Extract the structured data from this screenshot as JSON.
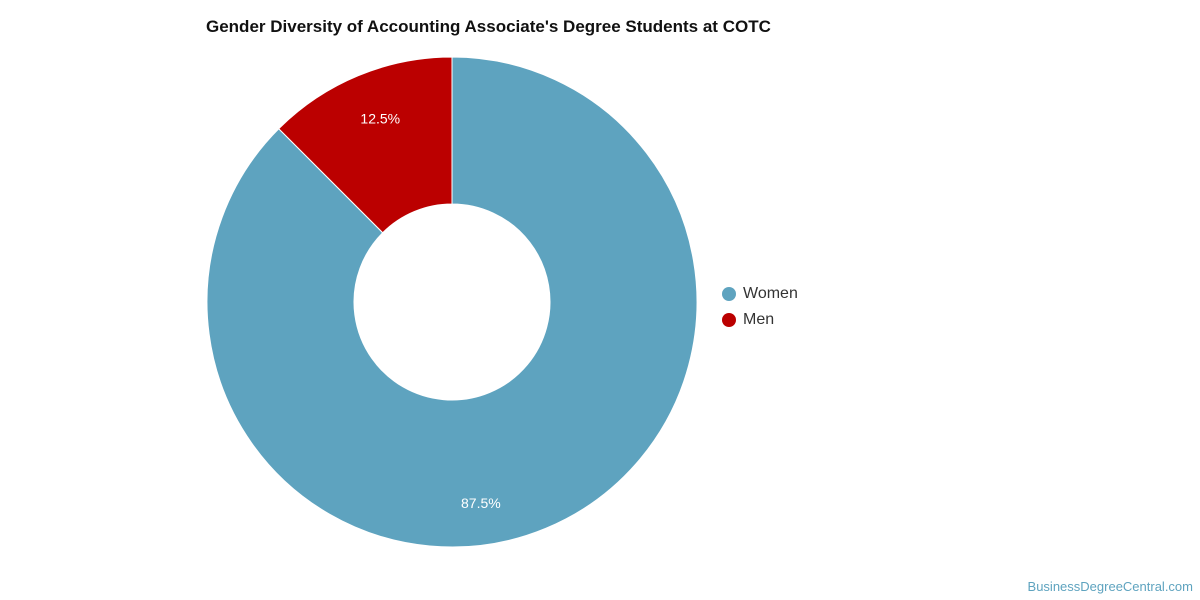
{
  "chart_data": {
    "type": "pie",
    "title": "Gender Diversity of Accounting Associate's Degree Students at COTC",
    "categories": [
      "Women",
      "Men"
    ],
    "values": [
      87.5,
      12.5
    ],
    "value_labels": [
      "87.5%",
      "12.5%"
    ],
    "colors": [
      "#5ea3bf",
      "#bb0000"
    ],
    "donut": true,
    "legend_position": "right"
  },
  "footer": {
    "source": "BusinessDegreeCentral.com"
  }
}
